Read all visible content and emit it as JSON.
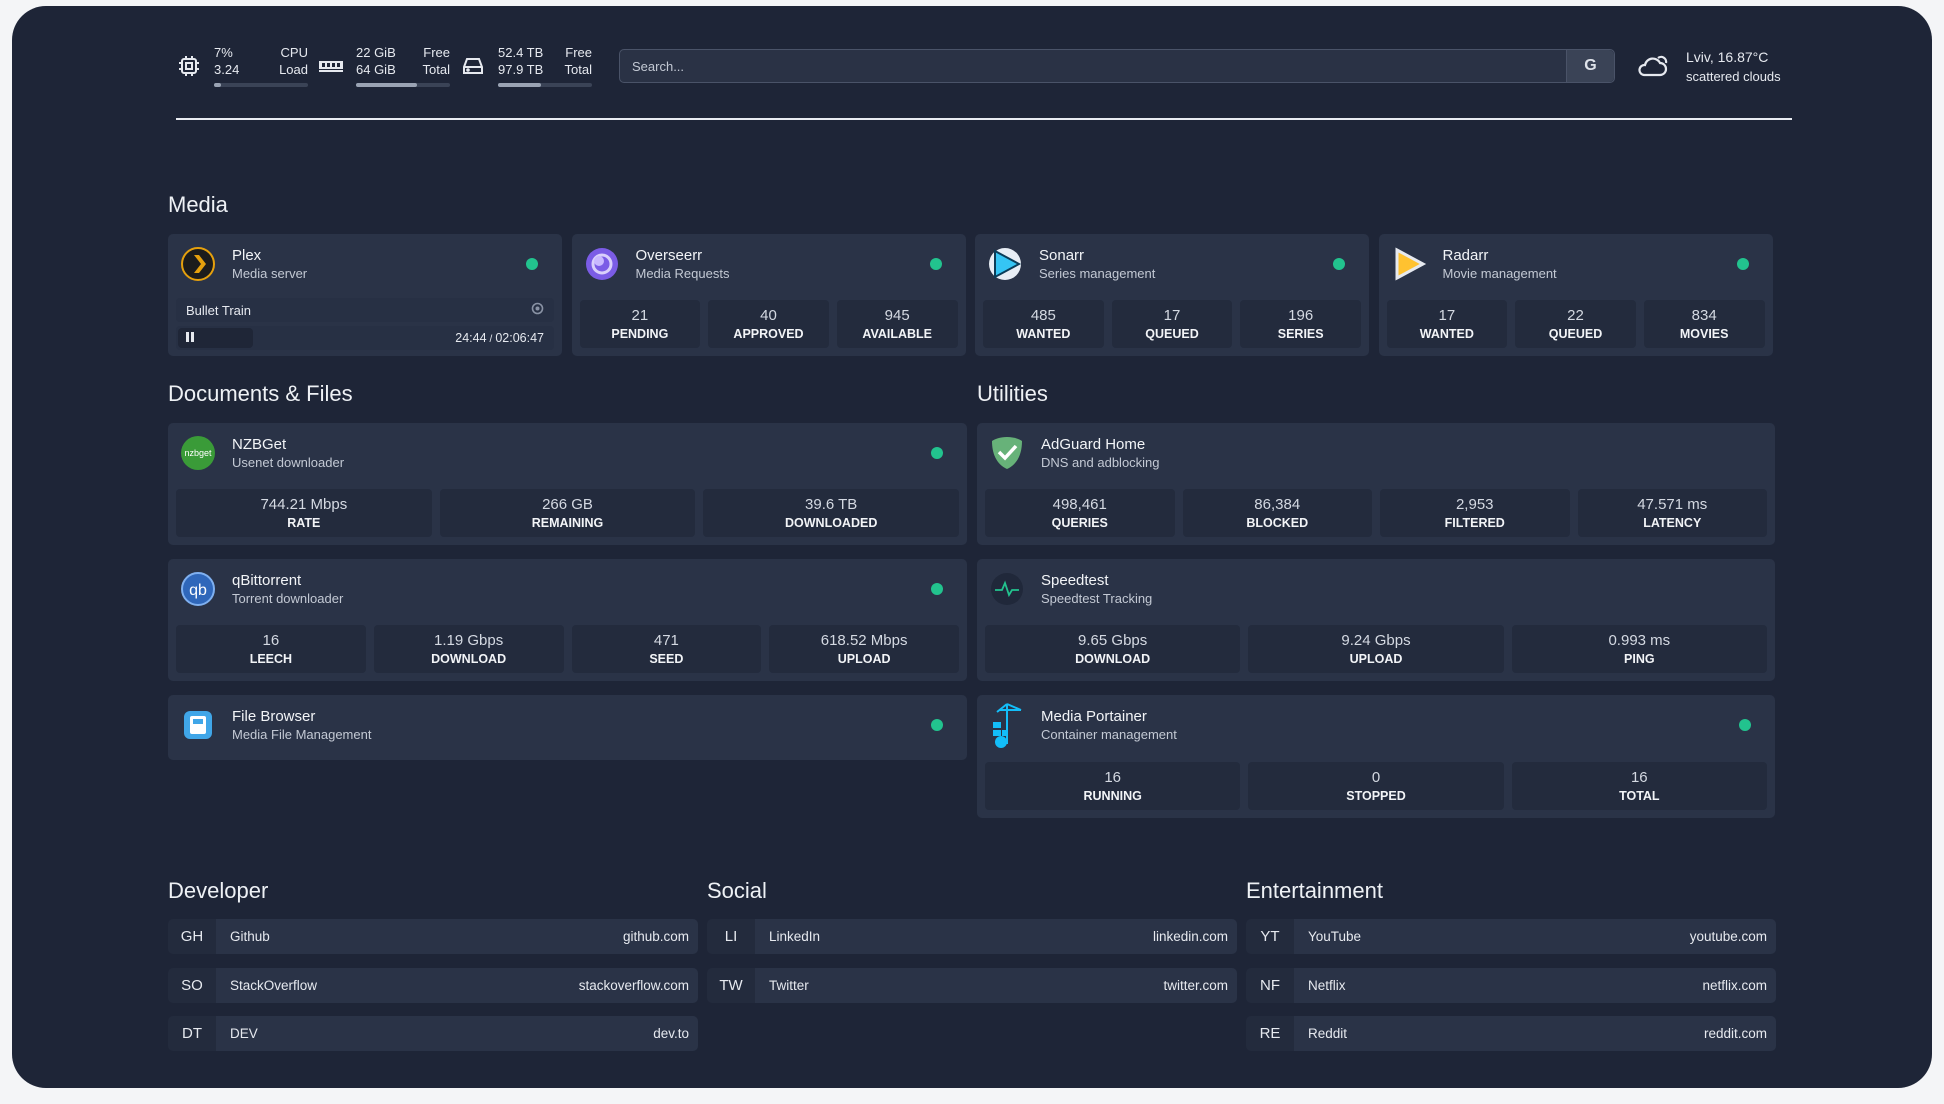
{
  "header": {
    "cpu": {
      "icon": "cpu-icon",
      "value1": "7%",
      "label1": "CPU",
      "value2": "3.24",
      "label2": "Load",
      "usage_percent": 7
    },
    "memory": {
      "icon": "memory-icon",
      "value1": "22 GiB",
      "label1": "Free",
      "value2": "64 GiB",
      "label2": "Total",
      "usage_percent": 65
    },
    "disk": {
      "icon": "disk-icon",
      "value1": "52.4 TB",
      "label1": "Free",
      "value2": "97.9 TB",
      "label2": "Total",
      "usage_percent": 46
    },
    "search": {
      "placeholder": "Search...",
      "button": "G"
    },
    "weather": {
      "icon": "cloud-icon",
      "location": "Lviv, 16.87°C",
      "condition": "scattered clouds"
    }
  },
  "colors": {
    "status_online": "#22c38e",
    "background": "#1e2537",
    "card": "#2a3347"
  },
  "sections": {
    "media": {
      "title": "Media",
      "services": [
        {
          "name": "Plex",
          "description": "Media server",
          "icon": "plex-icon",
          "status": "online",
          "now_playing": {
            "title": "Bullet Train",
            "state": "paused",
            "position": "24:44",
            "duration": "02:06:47",
            "separator": "/"
          }
        },
        {
          "name": "Overseerr",
          "description": "Media Requests",
          "icon": "overseerr-icon",
          "status": "online",
          "stats": [
            {
              "value": "21",
              "label": "PENDING"
            },
            {
              "value": "40",
              "label": "APPROVED"
            },
            {
              "value": "945",
              "label": "AVAILABLE"
            }
          ]
        },
        {
          "name": "Sonarr",
          "description": "Series management",
          "icon": "sonarr-icon",
          "status": "online",
          "stats": [
            {
              "value": "485",
              "label": "WANTED"
            },
            {
              "value": "17",
              "label": "QUEUED"
            },
            {
              "value": "196",
              "label": "SERIES"
            }
          ]
        },
        {
          "name": "Radarr",
          "description": "Movie management",
          "icon": "radarr-icon",
          "status": "online",
          "stats": [
            {
              "value": "17",
              "label": "WANTED"
            },
            {
              "value": "22",
              "label": "QUEUED"
            },
            {
              "value": "834",
              "label": "MOVIES"
            }
          ]
        }
      ]
    },
    "documents": {
      "title": "Documents & Files",
      "services": [
        {
          "name": "NZBGet",
          "description": "Usenet downloader",
          "icon": "nzbget-icon",
          "status": "online",
          "stats": [
            {
              "value": "744.21 Mbps",
              "label": "RATE"
            },
            {
              "value": "266 GB",
              "label": "REMAINING"
            },
            {
              "value": "39.6 TB",
              "label": "DOWNLOADED"
            }
          ]
        },
        {
          "name": "qBittorrent",
          "description": "Torrent downloader",
          "icon": "qbittorrent-icon",
          "status": "online",
          "stats": [
            {
              "value": "16",
              "label": "LEECH"
            },
            {
              "value": "1.19 Gbps",
              "label": "DOWNLOAD"
            },
            {
              "value": "471",
              "label": "SEED"
            },
            {
              "value": "618.52 Mbps",
              "label": "UPLOAD"
            }
          ]
        },
        {
          "name": "File Browser",
          "description": "Media File Management",
          "icon": "filebrowser-icon",
          "status": "online"
        }
      ]
    },
    "utilities": {
      "title": "Utilities",
      "services": [
        {
          "name": "AdGuard Home",
          "description": "DNS and adblocking",
          "icon": "adguard-icon",
          "stats": [
            {
              "value": "498,461",
              "label": "QUERIES"
            },
            {
              "value": "86,384",
              "label": "BLOCKED"
            },
            {
              "value": "2,953",
              "label": "FILTERED"
            },
            {
              "value": "47.571 ms",
              "label": "LATENCY"
            }
          ]
        },
        {
          "name": "Speedtest",
          "description": "Speedtest Tracking",
          "icon": "speedtest-icon",
          "stats": [
            {
              "value": "9.65 Gbps",
              "label": "DOWNLOAD"
            },
            {
              "value": "9.24 Gbps",
              "label": "UPLOAD"
            },
            {
              "value": "0.993 ms",
              "label": "PING"
            }
          ]
        },
        {
          "name": "Media Portainer",
          "description": "Container management",
          "icon": "portainer-icon",
          "status": "online",
          "stats": [
            {
              "value": "16",
              "label": "RUNNING"
            },
            {
              "value": "0",
              "label": "STOPPED"
            },
            {
              "value": "16",
              "label": "TOTAL"
            }
          ]
        }
      ]
    }
  },
  "bookmarks": [
    {
      "title": "Developer",
      "items": [
        {
          "abbr": "GH",
          "name": "Github",
          "url": "github.com"
        },
        {
          "abbr": "SO",
          "name": "StackOverflow",
          "url": "stackoverflow.com"
        },
        {
          "abbr": "DT",
          "name": "DEV",
          "url": "dev.to"
        }
      ]
    },
    {
      "title": "Social",
      "items": [
        {
          "abbr": "LI",
          "name": "LinkedIn",
          "url": "linkedin.com"
        },
        {
          "abbr": "TW",
          "name": "Twitter",
          "url": "twitter.com"
        }
      ]
    },
    {
      "title": "Entertainment",
      "items": [
        {
          "abbr": "YT",
          "name": "YouTube",
          "url": "youtube.com"
        },
        {
          "abbr": "NF",
          "name": "Netflix",
          "url": "netflix.com"
        },
        {
          "abbr": "RE",
          "name": "Reddit",
          "url": "reddit.com"
        }
      ]
    }
  ]
}
